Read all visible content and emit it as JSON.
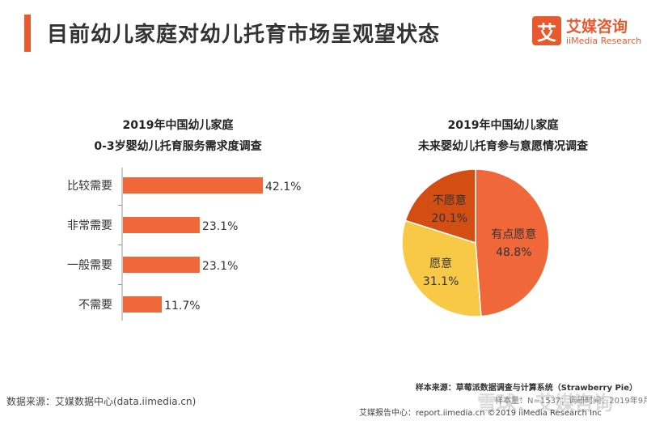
{
  "header": {
    "title": "目前幼儿家庭对幼儿托育市场呈观望状态",
    "logo_mark": "艾",
    "logo_cn": "艾媒咨询",
    "logo_en": "iiMedia Research"
  },
  "colors": {
    "accent": "#e85a2e",
    "bar": "#f0683a",
    "pie_1": "#f0683a",
    "pie_2": "#f7c946",
    "pie_3": "#d24e13"
  },
  "chart_data": [
    {
      "type": "bar",
      "orientation": "horizontal",
      "title_line1": "2019年中国幼儿家庭",
      "title_line2": "0-3岁婴幼儿托育服务需求度调查",
      "categories": [
        "比较需要",
        "非常需要",
        "一般需要",
        "不需要"
      ],
      "values": [
        42.1,
        23.1,
        23.1,
        11.7
      ],
      "labels": [
        "42.1%",
        "23.1%",
        "23.1%",
        "11.7%"
      ],
      "xlim": [
        0,
        50
      ],
      "grid": false
    },
    {
      "type": "pie",
      "title_line1": "2019年中国幼儿家庭",
      "title_line2": "未来婴幼儿托育参与意愿情况调查",
      "slices": [
        {
          "label": "有点愿意",
          "value": 48.8,
          "value_label": "48.8%"
        },
        {
          "label": "愿意",
          "value": 31.1,
          "value_label": "31.1%"
        },
        {
          "label": "不愿意",
          "value": 20.1,
          "value_label": "20.1%"
        }
      ]
    }
  ],
  "footer": {
    "sample": "样本来源：草莓派数据调查与计算系统（Strawberry Pie）",
    "source": "数据来源：艾媒数据中心(data.iimedia.cn)",
    "footer": "艾媒报告中心：report.iimedia.cn  ©2019  iiMedia Research  Inc",
    "detail": "样本量：N=1537；调研时间：2019年9月",
    "watermark": "雪球：艾媒咨询"
  }
}
